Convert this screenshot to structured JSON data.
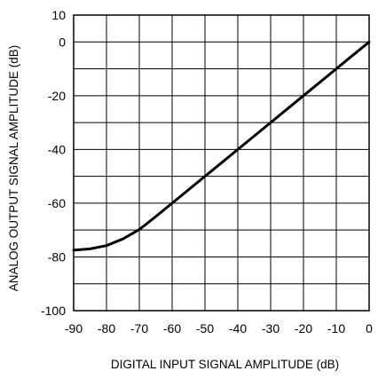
{
  "chart_data": {
    "type": "line",
    "xlabel": "DIGITAL INPUT SIGNAL AMPLITUDE (dB)",
    "ylabel": "ANALOG OUTPUT SIGNAL AMPLITUDE (dB)",
    "xlim": [
      -90,
      0
    ],
    "ylim": [
      -100,
      10
    ],
    "grid": true,
    "x_ticks": [
      -90,
      -80,
      -70,
      -60,
      -50,
      -40,
      -30,
      -20,
      -10,
      0
    ],
    "x_tick_labels": [
      "-90",
      "-80",
      "-70",
      "-60",
      "-50",
      "-40",
      "-30",
      "-20",
      "-10",
      "0"
    ],
    "y_ticks": [
      10,
      0,
      -20,
      -40,
      -60,
      -80,
      -100
    ],
    "y_tick_labels": [
      "10",
      "0",
      "-20",
      "-40",
      "-60",
      "-80",
      "-100"
    ],
    "y_gridlines": [
      10,
      0,
      -10,
      -20,
      -30,
      -40,
      -50,
      -60,
      -70,
      -80,
      -90,
      -100
    ],
    "series": [
      {
        "color": "#000000",
        "x": [
          -90,
          -85,
          -80,
          -75,
          -70,
          -65,
          -60,
          -50,
          -40,
          -30,
          -20,
          -10,
          0
        ],
        "y": [
          -77.5,
          -77,
          -75.8,
          -73.3,
          -69.8,
          -65,
          -60,
          -50,
          -40,
          -30,
          -20,
          -10,
          0
        ]
      }
    ]
  }
}
